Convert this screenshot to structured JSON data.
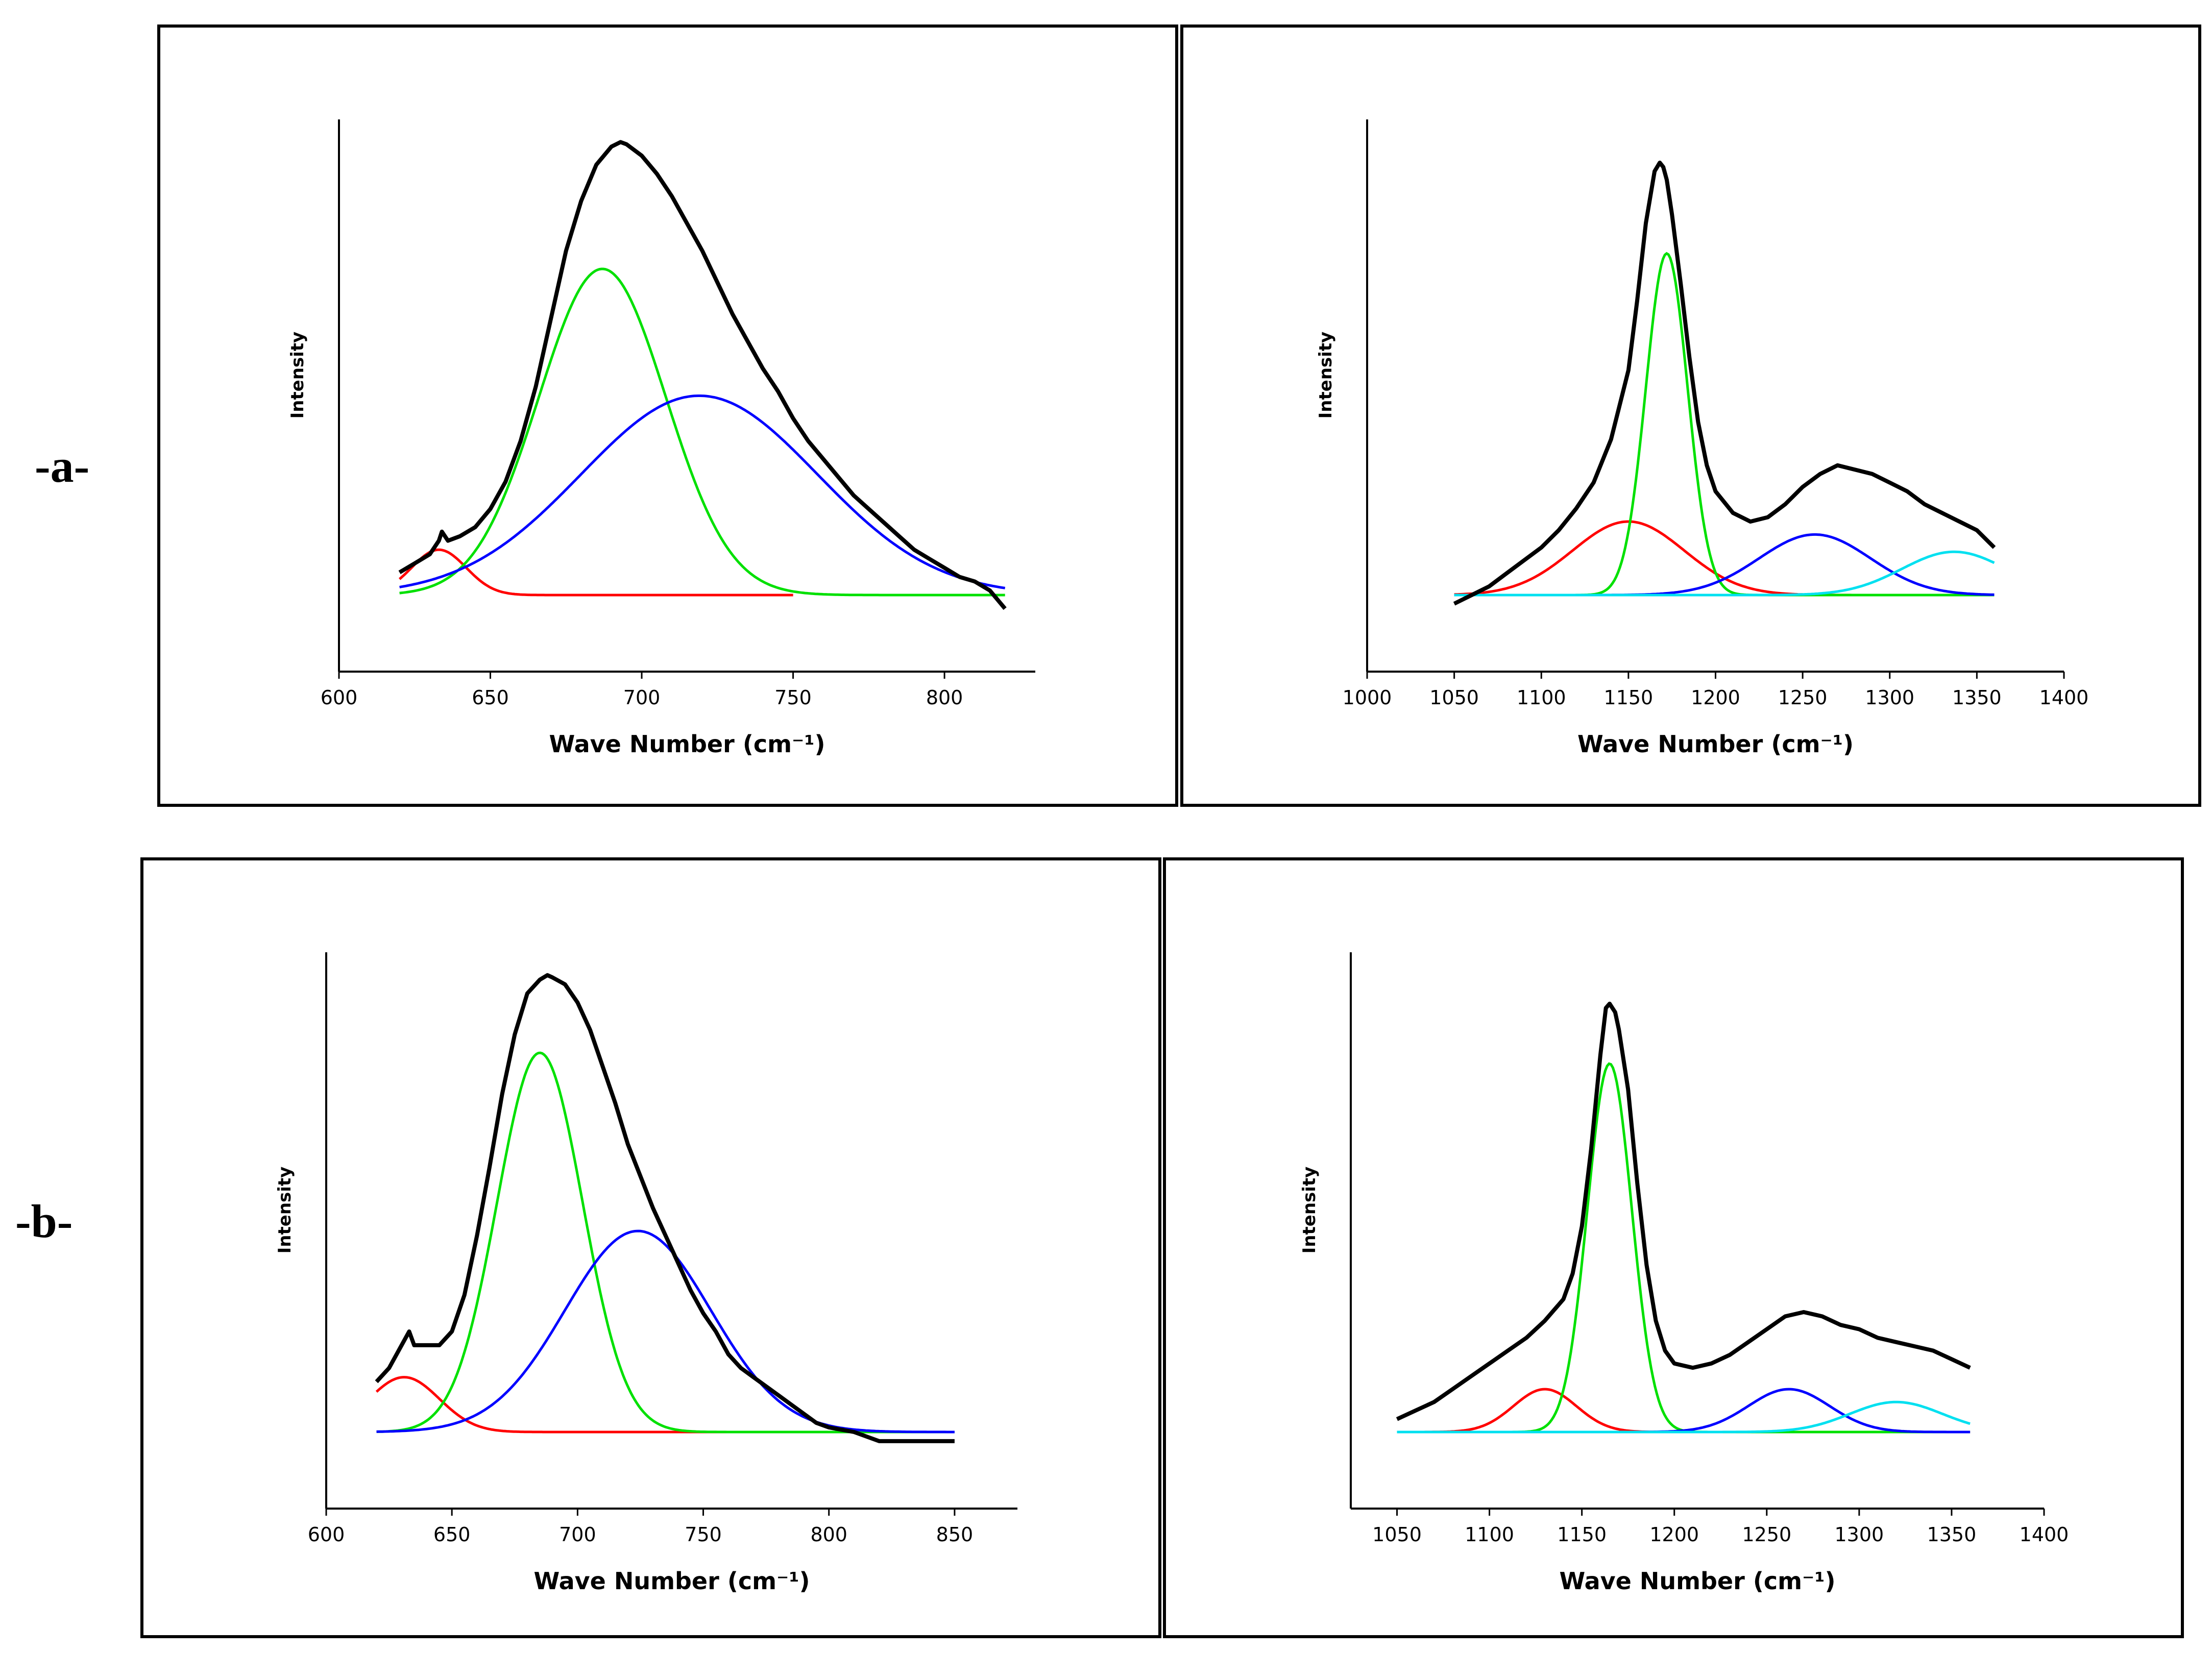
{
  "row_labels": [
    "-a-",
    "-b-"
  ],
  "chart_data": [
    {
      "type": "line",
      "panel": "a-left",
      "xlabel": "Wave Number (cm⁻¹)",
      "ylabel": "Intensity",
      "xlim": [
        600,
        830
      ],
      "xticks": [
        600,
        650,
        700,
        750,
        800
      ],
      "ylim": [
        0,
        1.05
      ],
      "series": [
        {
          "name": "spectrum",
          "color": "#000000",
          "x": [
            620,
            625,
            630,
            633,
            634,
            636,
            640,
            645,
            650,
            655,
            660,
            665,
            670,
            675,
            680,
            685,
            690,
            693,
            695,
            700,
            705,
            710,
            715,
            720,
            725,
            730,
            735,
            740,
            745,
            750,
            755,
            760,
            765,
            770,
            775,
            780,
            785,
            790,
            795,
            800,
            805,
            810,
            815,
            820
          ],
          "y": [
            0.05,
            0.07,
            0.09,
            0.12,
            0.14,
            0.12,
            0.13,
            0.15,
            0.19,
            0.25,
            0.34,
            0.46,
            0.61,
            0.76,
            0.87,
            0.95,
            0.99,
            1.0,
            0.995,
            0.97,
            0.93,
            0.88,
            0.82,
            0.76,
            0.69,
            0.62,
            0.56,
            0.5,
            0.45,
            0.39,
            0.34,
            0.3,
            0.26,
            0.22,
            0.19,
            0.16,
            0.13,
            0.1,
            0.08,
            0.06,
            0.04,
            0.03,
            0.01,
            -0.03
          ]
        },
        {
          "name": "peak 1",
          "color": "#ff0000",
          "center": 633,
          "height": 0.1,
          "sigma": 9,
          "x0": 620,
          "x1": 750
        },
        {
          "name": "peak 2",
          "color": "#00e000",
          "center": 687,
          "height": 0.72,
          "sigma": 21,
          "x0": 620,
          "x1": 820
        },
        {
          "name": "peak 3",
          "color": "#0000ff",
          "center": 719,
          "height": 0.44,
          "sigma": 39,
          "x0": 620,
          "x1": 820
        }
      ]
    },
    {
      "type": "line",
      "panel": "a-right",
      "xlabel": "Wave Number (cm⁻¹)",
      "ylabel": "Intensity",
      "xlim": [
        1000,
        1400
      ],
      "xticks": [
        1000,
        1050,
        1100,
        1150,
        1200,
        1250,
        1300,
        1350,
        1400
      ],
      "ylim": [
        0,
        1.1
      ],
      "series": [
        {
          "name": "spectrum",
          "color": "#000000",
          "x": [
            1050,
            1060,
            1070,
            1080,
            1090,
            1100,
            1110,
            1120,
            1130,
            1140,
            1150,
            1155,
            1160,
            1165,
            1168,
            1170,
            1172,
            1175,
            1180,
            1185,
            1190,
            1195,
            1200,
            1210,
            1220,
            1230,
            1240,
            1250,
            1260,
            1270,
            1280,
            1290,
            1300,
            1310,
            1320,
            1330,
            1340,
            1350,
            1360
          ],
          "y": [
            -0.02,
            0.0,
            0.02,
            0.05,
            0.08,
            0.11,
            0.15,
            0.2,
            0.26,
            0.36,
            0.52,
            0.68,
            0.86,
            0.98,
            1.0,
            0.99,
            0.96,
            0.88,
            0.72,
            0.55,
            0.4,
            0.3,
            0.24,
            0.19,
            0.17,
            0.18,
            0.21,
            0.25,
            0.28,
            0.3,
            0.29,
            0.28,
            0.26,
            0.24,
            0.21,
            0.19,
            0.17,
            0.15,
            0.11
          ]
        },
        {
          "name": "peak 1",
          "color": "#ff0000",
          "center": 1150,
          "height": 0.17,
          "sigma": 32,
          "x0": 1050,
          "x1": 1360
        },
        {
          "name": "peak 2",
          "color": "#00e000",
          "center": 1172,
          "height": 0.79,
          "sigma": 12,
          "x0": 1050,
          "x1": 1360
        },
        {
          "name": "peak 3",
          "color": "#0000ff",
          "center": 1257,
          "height": 0.14,
          "sigma": 32,
          "x0": 1050,
          "x1": 1360
        },
        {
          "name": "peak 4",
          "color": "#00e0f0",
          "center": 1337,
          "height": 0.1,
          "sigma": 30,
          "x0": 1050,
          "x1": 1360
        }
      ]
    },
    {
      "type": "line",
      "panel": "b-left",
      "xlabel": "Wave Number (cm⁻¹)",
      "ylabel": "Intensity",
      "xlim": [
        600,
        875
      ],
      "xticks": [
        600,
        650,
        700,
        750,
        800,
        850
      ],
      "ylim": [
        0,
        1.05
      ],
      "series": [
        {
          "name": "spectrum",
          "color": "#000000",
          "x": [
            620,
            625,
            630,
            633,
            635,
            640,
            645,
            650,
            655,
            660,
            665,
            670,
            675,
            680,
            685,
            688,
            690,
            695,
            700,
            705,
            710,
            715,
            720,
            725,
            730,
            735,
            740,
            745,
            750,
            755,
            760,
            765,
            770,
            775,
            780,
            785,
            790,
            795,
            800,
            810,
            820,
            830,
            840,
            850
          ],
          "y": [
            0.11,
            0.14,
            0.19,
            0.22,
            0.19,
            0.19,
            0.19,
            0.22,
            0.3,
            0.43,
            0.58,
            0.74,
            0.87,
            0.96,
            0.99,
            1.0,
            0.995,
            0.98,
            0.94,
            0.88,
            0.8,
            0.72,
            0.63,
            0.56,
            0.49,
            0.43,
            0.37,
            0.31,
            0.26,
            0.22,
            0.17,
            0.14,
            0.12,
            0.1,
            0.08,
            0.06,
            0.04,
            0.02,
            0.01,
            0.0,
            -0.02,
            -0.02,
            -0.02,
            -0.02
          ]
        },
        {
          "name": "peak 1",
          "color": "#ff0000",
          "center": 631,
          "height": 0.12,
          "sigma": 14,
          "x0": 620,
          "x1": 760
        },
        {
          "name": "peak 2",
          "color": "#00e000",
          "center": 685,
          "height": 0.83,
          "sigma": 17,
          "x0": 620,
          "x1": 850
        },
        {
          "name": "peak 3",
          "color": "#0000ff",
          "center": 724,
          "height": 0.44,
          "sigma": 29,
          "x0": 620,
          "x1": 850
        }
      ]
    },
    {
      "type": "line",
      "panel": "b-right",
      "xlabel": "Wave Number (cm⁻¹)",
      "ylabel": "Intensity",
      "xlim": [
        1025,
        1400
      ],
      "xticks": [
        1050,
        1100,
        1150,
        1200,
        1250,
        1300,
        1350,
        1400
      ],
      "ylim": [
        0,
        1.12
      ],
      "series": [
        {
          "name": "spectrum",
          "color": "#000000",
          "x": [
            1050,
            1060,
            1070,
            1080,
            1090,
            1100,
            1110,
            1120,
            1130,
            1140,
            1145,
            1150,
            1155,
            1160,
            1163,
            1165,
            1168,
            1170,
            1175,
            1180,
            1185,
            1190,
            1195,
            1200,
            1210,
            1220,
            1230,
            1240,
            1250,
            1260,
            1270,
            1280,
            1290,
            1300,
            1310,
            1320,
            1330,
            1340,
            1350,
            1360
          ],
          "y": [
            0.03,
            0.05,
            0.07,
            0.1,
            0.13,
            0.16,
            0.19,
            0.22,
            0.26,
            0.31,
            0.37,
            0.48,
            0.66,
            0.88,
            0.99,
            1.0,
            0.98,
            0.94,
            0.8,
            0.58,
            0.39,
            0.26,
            0.19,
            0.16,
            0.15,
            0.16,
            0.18,
            0.21,
            0.24,
            0.27,
            0.28,
            0.27,
            0.25,
            0.24,
            0.22,
            0.21,
            0.2,
            0.19,
            0.17,
            0.15
          ]
        },
        {
          "name": "peak 1",
          "color": "#ff0000",
          "center": 1130,
          "height": 0.1,
          "sigma": 17,
          "x0": 1050,
          "x1": 1360
        },
        {
          "name": "peak 2",
          "color": "#00e000",
          "center": 1165,
          "height": 0.86,
          "sigma": 12,
          "x0": 1050,
          "x1": 1360
        },
        {
          "name": "peak 3",
          "color": "#0000ff",
          "center": 1262,
          "height": 0.1,
          "sigma": 22,
          "x0": 1050,
          "x1": 1360
        },
        {
          "name": "peak 4",
          "color": "#00e0f0",
          "center": 1320,
          "height": 0.07,
          "sigma": 25,
          "x0": 1050,
          "x1": 1360
        }
      ]
    }
  ]
}
